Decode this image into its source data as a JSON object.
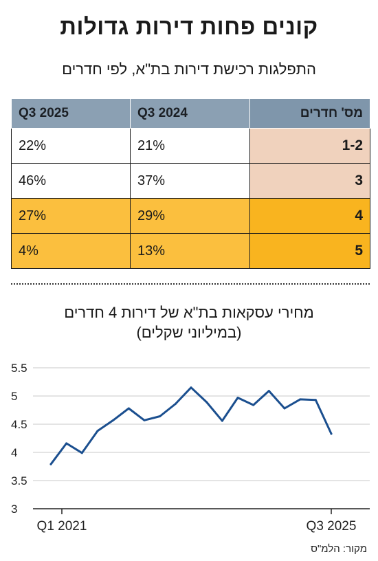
{
  "title": "קונים פחות דירות גדולות",
  "table_subtitle": "התפלגות רכישת דירות בת\"א, לפי חדרים",
  "table": {
    "headers": [
      "מס' חדרים",
      "Q3 2024",
      "Q3 2025"
    ],
    "rows": [
      {
        "rooms": "1-2",
        "q3_2024": "21%",
        "q3_2025": "22%",
        "highlight": "none"
      },
      {
        "rooms": "3",
        "q3_2024": "37%",
        "q3_2025": "46%",
        "highlight": "none"
      },
      {
        "rooms": "4",
        "q3_2024": "29%",
        "q3_2025": "27%",
        "highlight": "full"
      },
      {
        "rooms": "5",
        "q3_2024": "13%",
        "q3_2025": "4%",
        "highlight": "full"
      }
    ]
  },
  "colors": {
    "header_bg": "#8ba0b3",
    "rooms_cell_light": "#f0d2bd",
    "highlight_row": "#fbbf3e",
    "highlight_rooms": "#f9b41f",
    "line": "#1b4f8f"
  },
  "chart_title_line1": "מחירי עסקאות בת\"א של דירות 4 חדרים",
  "chart_title_line2": "(במיליוני שקלים)",
  "chart_data": {
    "type": "line",
    "title": "מחירי עסקאות בת\"א של דירות 4 חדרים (במיליוני שקלים)",
    "xlabel": "",
    "ylabel": "",
    "x": [
      "Q1 2021",
      "Q2 2021",
      "Q3 2021",
      "Q4 2021",
      "Q1 2022",
      "Q2 2022",
      "Q3 2022",
      "Q4 2022",
      "Q1 2023",
      "Q2 2023",
      "Q3 2023",
      "Q4 2023",
      "Q1 2024",
      "Q2 2024",
      "Q3 2024",
      "Q4 2024",
      "Q1 2025",
      "Q2 2025",
      "Q3 2025"
    ],
    "values": [
      3.79,
      4.16,
      3.99,
      4.38,
      4.57,
      4.78,
      4.57,
      4.64,
      4.86,
      5.15,
      4.89,
      4.56,
      4.97,
      4.84,
      5.09,
      4.78,
      4.94,
      4.93,
      4.33
    ],
    "ylim": [
      3,
      5.5
    ],
    "yticks": [
      "3",
      "3.5",
      "4",
      "4.5",
      "5",
      "5.5"
    ],
    "xtick_labels": [
      "Q1 2021",
      "Q3 2025"
    ],
    "grid": true,
    "legend": "none"
  },
  "source": "מקור: הלמ\"ס"
}
